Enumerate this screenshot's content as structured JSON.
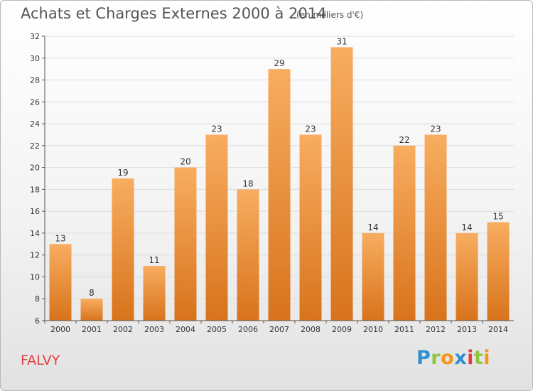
{
  "header": {
    "title": "Achats et Charges Externes 2000 à 2014",
    "subtitle": "(en milliers d'€)"
  },
  "footer": {
    "commune": "FALVY",
    "logo": [
      "P",
      "r",
      "o",
      "x",
      "i",
      "t",
      "i"
    ],
    "logo_colors": [
      "#2f8fd0",
      "#8dc63f",
      "#f7941d",
      "#2f8fd0",
      "#e0403f",
      "#8dc63f",
      "#f7941d"
    ]
  },
  "colors": {
    "bar_light": "#f8ad60",
    "bar_dark": "#d8731c",
    "grid": "#dcdcdc",
    "axis": "#555555"
  },
  "chart_data": {
    "type": "bar",
    "categories": [
      "2000",
      "2001",
      "2002",
      "2003",
      "2004",
      "2005",
      "2006",
      "2007",
      "2008",
      "2009",
      "2010",
      "2011",
      "2012",
      "2013",
      "2014"
    ],
    "values": [
      13,
      8,
      19,
      11,
      20,
      23,
      18,
      29,
      23,
      31,
      14,
      22,
      23,
      14,
      15
    ],
    "title": "Achats et Charges Externes 2000 à 2014",
    "xlabel": "",
    "ylabel": "",
    "ylim": [
      6,
      32
    ],
    "yticks": [
      6,
      8,
      10,
      12,
      14,
      16,
      18,
      20,
      22,
      24,
      26,
      28,
      30,
      32
    ],
    "grid": true,
    "legend": "none"
  }
}
